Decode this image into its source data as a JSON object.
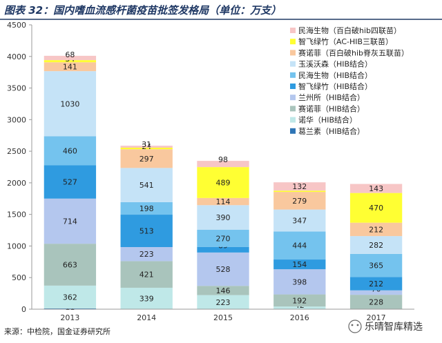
{
  "chart_data": {
    "type": "bar",
    "stacked": true,
    "title": "图表 32：国内嗜血流感杆菌疫苗批签发格局（单位：万支）",
    "categories": [
      "2013",
      "2014",
      "2015",
      "2016",
      "2017"
    ],
    "ylim": [
      0,
      4500
    ],
    "yticks": [
      0,
      500,
      1000,
      1500,
      2000,
      2500,
      3000,
      3500,
      4000,
      4500
    ],
    "grid": false,
    "legend_position": "top-right",
    "series": [
      {
        "name": "葛兰素（HIB结合）",
        "color": "#2e75b6",
        "values": [
          11,
          0,
          0,
          0,
          0
        ]
      },
      {
        "name": "诺华（HIB结合）",
        "color": "#bfe8e8",
        "values": [
          362,
          339,
          223,
          42,
          0
        ]
      },
      {
        "name": "赛诺菲（HIB结合）",
        "color": "#a9c4bc",
        "values": [
          663,
          421,
          146,
          192,
          228
        ]
      },
      {
        "name": "兰州所（HIB结合）",
        "color": "#b4c7ee",
        "values": [
          714,
          223,
          528,
          398,
          70
        ]
      },
      {
        "name": "智飞绿竹（HIB结合）",
        "color": "#2f9be0",
        "values": [
          527,
          513,
          89,
          154,
          212
        ]
      },
      {
        "name": "民海生物（HIB结合）",
        "color": "#74c3ee",
        "values": [
          460,
          198,
          270,
          444,
          365
        ]
      },
      {
        "name": "玉溪沃森（HIB结合）",
        "color": "#c5e3f7",
        "values": [
          1030,
          541,
          390,
          347,
          282
        ]
      },
      {
        "name": "赛诺菲（百白破hib脊灰五联苗）",
        "color": "#f9c89e",
        "values": [
          141,
          297,
          114,
          279,
          212
        ]
      },
      {
        "name": "智飞绿竹（AC-HIB三联苗）",
        "color": "#ffff33",
        "values": [
          34,
          24,
          489,
          20,
          470
        ]
      },
      {
        "name": "民海生物（百白破hib四联苗）",
        "color": "#f7c6c6",
        "values": [
          68,
          31,
          98,
          132,
          143
        ]
      }
    ],
    "point_labels": [
      [
        "11",
        "",
        "",
        "",
        ""
      ],
      [
        "362",
        "339",
        "223",
        "42",
        ""
      ],
      [
        "663",
        "421",
        "146",
        "192",
        "228"
      ],
      [
        "714",
        "223",
        "528",
        "398",
        "70"
      ],
      [
        "527",
        "513",
        "89",
        "154",
        "212"
      ],
      [
        "460",
        "198",
        "270",
        "444",
        "365"
      ],
      [
        "1030",
        "541",
        "390",
        "347",
        "282"
      ],
      [
        "141",
        "297",
        "114",
        "279",
        "212"
      ],
      [
        "34",
        "24",
        "489",
        "",
        "470"
      ],
      [
        "68",
        "31",
        "98",
        "132",
        "143"
      ]
    ]
  },
  "source": "来源：中检院，国金证券研究所",
  "watermark": "乐晴智库精选"
}
